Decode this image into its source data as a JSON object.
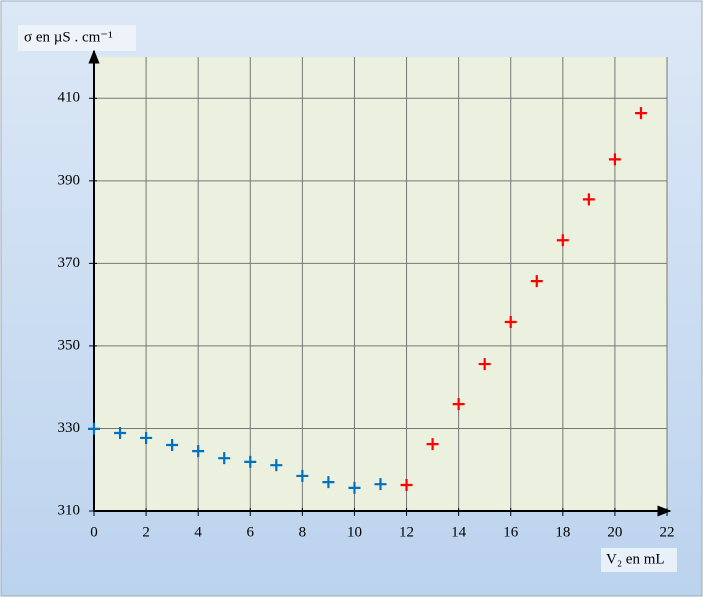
{
  "chart_data": {
    "type": "scatter",
    "y_label": "σ en µS . cm⁻¹",
    "x_label": "V₂ en mL",
    "xlim": [
      0,
      22
    ],
    "xticks": [
      0,
      2,
      4,
      6,
      8,
      10,
      12,
      14,
      16,
      18,
      20,
      22
    ],
    "ylim": [
      310,
      420
    ],
    "yticks": [
      310,
      330,
      350,
      370,
      390,
      410
    ],
    "grid": true,
    "series": [
      {
        "color": "#0070c0",
        "x": [
          0,
          1,
          2,
          3,
          4,
          5,
          6,
          7,
          8,
          9,
          10,
          11
        ],
        "values": [
          329.9,
          328.9,
          327.7,
          326,
          324.5,
          322.8,
          321.9,
          321.1,
          318.5,
          317,
          315.6,
          316.5
        ]
      },
      {
        "color": "#ff0000",
        "x": [
          12,
          13,
          14,
          15,
          16,
          17,
          18,
          19,
          20,
          21
        ],
        "values": [
          316.3,
          326.2,
          335.9,
          345.6,
          355.8,
          365.7,
          375.6,
          385.5,
          395.2,
          406.4
        ]
      }
    ]
  }
}
